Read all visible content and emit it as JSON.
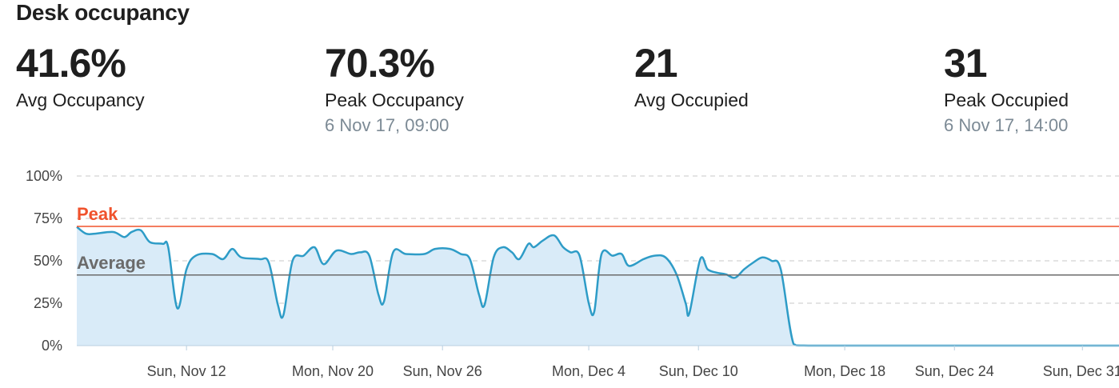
{
  "title": "Desk occupancy",
  "stats": [
    {
      "value": "41.6%",
      "label": "Avg Occupancy",
      "sub": ""
    },
    {
      "value": "70.3%",
      "label": "Peak Occupancy",
      "sub": "6 Nov 17, 09:00"
    },
    {
      "value": "21",
      "label": "Avg Occupied",
      "sub": ""
    },
    {
      "value": "31",
      "label": "Peak Occupied",
      "sub": "6 Nov 17, 14:00"
    }
  ],
  "colors": {
    "line": "#2e9cc7",
    "fill": "#d9ebf8",
    "peak": "#f0522c",
    "average": "#6b6b6b",
    "grid": "#c8c8c8"
  },
  "chart_data": {
    "type": "area",
    "title": "",
    "xlabel": "",
    "ylabel": "",
    "ylim": [
      0,
      100
    ],
    "y_ticks": [
      "0%",
      "25%",
      "50%",
      "75%",
      "100%"
    ],
    "y_tick_values": [
      0,
      25,
      50,
      75,
      100
    ],
    "x_range": [
      "2017-11-06",
      "2018-01-02"
    ],
    "x_tick_labels": [
      {
        "date": "2017-11-12",
        "label": "Sun, Nov 12"
      },
      {
        "date": "2017-11-20",
        "label": "Mon, Nov 20"
      },
      {
        "date": "2017-11-26",
        "label": "Sun, Nov 26"
      },
      {
        "date": "2017-12-04",
        "label": "Mon, Dec 4"
      },
      {
        "date": "2017-12-10",
        "label": "Sun, Dec 10"
      },
      {
        "date": "2017-12-18",
        "label": "Mon, Dec 18"
      },
      {
        "date": "2017-12-24",
        "label": "Sun, Dec 24"
      },
      {
        "date": "2017-12-31",
        "label": "Sun, Dec 31"
      }
    ],
    "reference_lines": [
      {
        "label": "Peak",
        "value": 70.3
      },
      {
        "label": "Average",
        "value": 41.6
      }
    ],
    "grid": true,
    "series": [
      {
        "points": [
          [
            "2017-11-06",
            70
          ],
          [
            "2017-11-06.5",
            66
          ],
          [
            "2017-11-07",
            66
          ],
          [
            "2017-11-08",
            67
          ],
          [
            "2017-11-08.6",
            64
          ],
          [
            "2017-11-09",
            67
          ],
          [
            "2017-11-09.5",
            68
          ],
          [
            "2017-11-10",
            61
          ],
          [
            "2017-11-10.7",
            60
          ],
          [
            "2017-11-11",
            58
          ],
          [
            "2017-11-11.5",
            22
          ],
          [
            "2017-11-12",
            45
          ],
          [
            "2017-11-12.5",
            53
          ],
          [
            "2017-11-13.4",
            54
          ],
          [
            "2017-11-14",
            51
          ],
          [
            "2017-11-14.5",
            57
          ],
          [
            "2017-11-15",
            52
          ],
          [
            "2017-11-16",
            51
          ],
          [
            "2017-11-16.5",
            49
          ],
          [
            "2017-11-17",
            24
          ],
          [
            "2017-11-17.3",
            18
          ],
          [
            "2017-11-17.8",
            50
          ],
          [
            "2017-11-18.4",
            53
          ],
          [
            "2017-11-19",
            58
          ],
          [
            "2017-11-19.5",
            48
          ],
          [
            "2017-11-20.2",
            56
          ],
          [
            "2017-11-21",
            54
          ],
          [
            "2017-11-21.5",
            55
          ],
          [
            "2017-11-22",
            53
          ],
          [
            "2017-11-22.5",
            30
          ],
          [
            "2017-11-22.8",
            26
          ],
          [
            "2017-11-23.3",
            55
          ],
          [
            "2017-11-24",
            54
          ],
          [
            "2017-11-25",
            54
          ],
          [
            "2017-11-25.6",
            57
          ],
          [
            "2017-11-26.4",
            57
          ],
          [
            "2017-11-27",
            54
          ],
          [
            "2017-11-27.5",
            51
          ],
          [
            "2017-11-28",
            30
          ],
          [
            "2017-11-28.3",
            24
          ],
          [
            "2017-11-28.8",
            52
          ],
          [
            "2017-11-29.3",
            58
          ],
          [
            "2017-11-29.8",
            55
          ],
          [
            "2017-11-30.2",
            51
          ],
          [
            "2017-11-30.7",
            60
          ],
          [
            "2017-12-01",
            58
          ],
          [
            "2017-12-01.5",
            62
          ],
          [
            "2017-12-02.1",
            65
          ],
          [
            "2017-12-02.6",
            58
          ],
          [
            "2017-12-03",
            55
          ],
          [
            "2017-12-03.5",
            53
          ],
          [
            "2017-12-04",
            25
          ],
          [
            "2017-12-04.3",
            20
          ],
          [
            "2017-12-04.7",
            54
          ],
          [
            "2017-12-05.3",
            53
          ],
          [
            "2017-12-05.8",
            54
          ],
          [
            "2017-12-06.2",
            47
          ],
          [
            "2017-12-07",
            51
          ],
          [
            "2017-12-07.6",
            53
          ],
          [
            "2017-12-08.2",
            52
          ],
          [
            "2017-12-08.8",
            42
          ],
          [
            "2017-12-09.3",
            25
          ],
          [
            "2017-12-09.5",
            19
          ],
          [
            "2017-12-10.1",
            51
          ],
          [
            "2017-12-10.5",
            45
          ],
          [
            "2017-12-11",
            43
          ],
          [
            "2017-12-11.5",
            42
          ],
          [
            "2017-12-12",
            40
          ],
          [
            "2017-12-12.5",
            45
          ],
          [
            "2017-12-13",
            49
          ],
          [
            "2017-12-13.5",
            52
          ],
          [
            "2017-12-14",
            50
          ],
          [
            "2017-12-14.5",
            45
          ],
          [
            "2017-12-15.2",
            1
          ],
          [
            "2017-12-16",
            0
          ],
          [
            "2017-12-21",
            0
          ],
          [
            "2017-12-24",
            0
          ],
          [
            "2018-01-02",
            0
          ]
        ]
      }
    ]
  }
}
